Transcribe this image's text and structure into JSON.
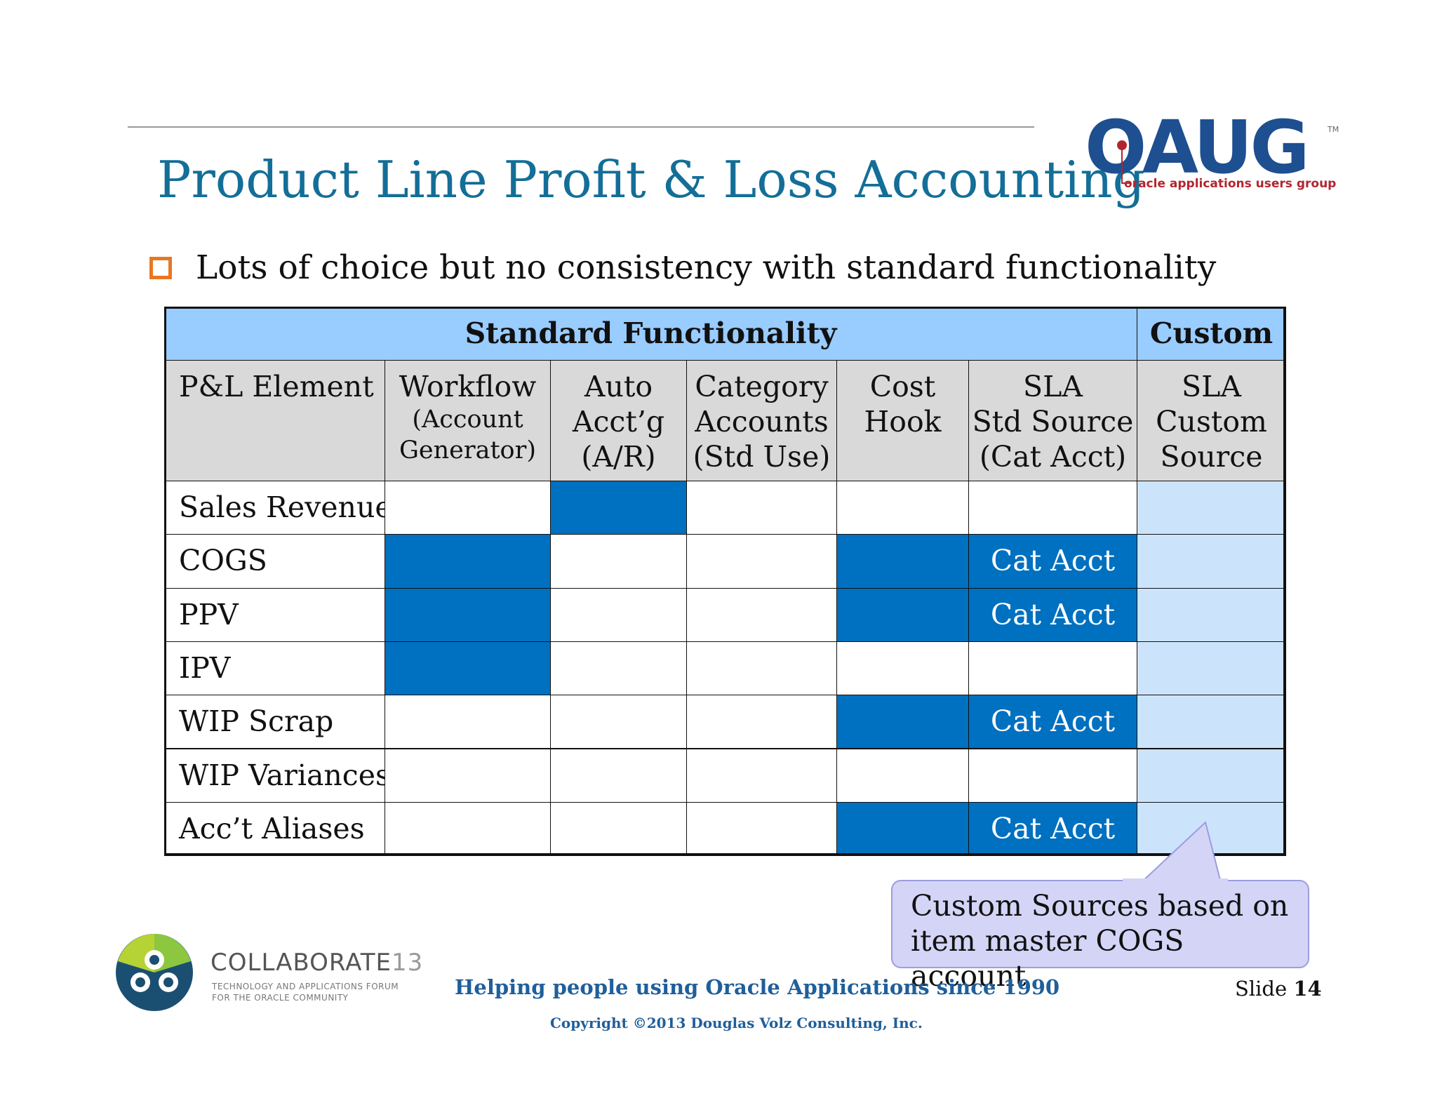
{
  "header": {
    "title": "Product Line Profit & Loss Accounting",
    "logo": {
      "word": "OAUG",
      "tm": "TM",
      "tagline": "oracle applications users group"
    }
  },
  "bullet": "Lots of choice but no consistency with standard functionality",
  "table": {
    "band_standard": "Standard Functionality",
    "band_custom": "Custom",
    "columns": [
      {
        "lines": [
          "P&L Element"
        ]
      },
      {
        "lines": [
          "Workflow",
          "(Account",
          "Generator)"
        ]
      },
      {
        "lines": [
          "Auto",
          "Acct’g",
          "(A/R)"
        ]
      },
      {
        "lines": [
          "Category",
          "Accounts",
          "(Std Use)"
        ]
      },
      {
        "lines": [
          "Cost",
          "Hook"
        ]
      },
      {
        "lines": [
          "SLA",
          "Std Source",
          "(Cat Acct)"
        ]
      },
      {
        "lines": [
          "SLA",
          "Custom",
          "Source"
        ]
      }
    ],
    "rows": [
      {
        "label": "Sales Revenue",
        "cells": [
          "",
          "x",
          "",
          "",
          "",
          "custom"
        ]
      },
      {
        "label": "COGS",
        "cells": [
          "x",
          "",
          "",
          "x",
          "Cat Acct",
          "custom"
        ]
      },
      {
        "label": "PPV",
        "cells": [
          "x",
          "",
          "",
          "x",
          "Cat Acct",
          "custom"
        ]
      },
      {
        "label": "IPV",
        "cells": [
          "x",
          "",
          "",
          "",
          "",
          "custom"
        ]
      },
      {
        "label": "WIP Scrap",
        "cells": [
          "",
          "",
          "",
          "x",
          "Cat Acct",
          "custom"
        ]
      },
      {
        "label": "WIP Variances",
        "cells": [
          "",
          "",
          "",
          "",
          "",
          "custom"
        ]
      },
      {
        "label": "Acc’t Aliases",
        "cells": [
          "",
          "",
          "",
          "x",
          "Cat Acct",
          "custom"
        ]
      }
    ],
    "colors": {
      "band": "#99ccff",
      "header": "#d9d9d9",
      "marked": "#0070c0",
      "custom": "#cce4fb"
    }
  },
  "callout": {
    "lines": [
      "Custom Sources based on",
      "item master COGS account"
    ]
  },
  "footer": {
    "collab_word": "COLLABORATE",
    "collab_num": "13",
    "collab_sub1": "TECHNOLOGY AND APPLICATIONS FORUM",
    "collab_sub2": "FOR THE ORACLE COMMUNITY",
    "tagline": "Helping people using Oracle Applications since 1990",
    "copyright": "Copyright ©2013 Douglas Volz Consulting, Inc.",
    "slide_label": "Slide",
    "slide_number": "14"
  }
}
